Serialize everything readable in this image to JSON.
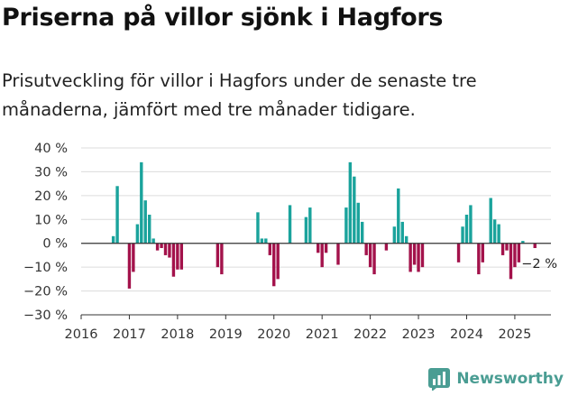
{
  "chart_data": {
    "type": "bar",
    "title": "Priserna på villor sjönk i Hagfors",
    "subtitle": "Prisutveckling för villor i Hagfors under de senaste tre månaderna, jämfört med tre månader tidigare.",
    "ylim": [
      -30,
      40
    ],
    "xlim": [
      2016,
      2025.75
    ],
    "y_ticks": [
      40,
      30,
      20,
      10,
      0,
      -10,
      -20,
      -30
    ],
    "y_tick_labels": [
      "40 %",
      "30 %",
      "20 %",
      "10 %",
      "0 %",
      "−10 %",
      "−20 %",
      "−30 %"
    ],
    "x_ticks": [
      2016,
      2017,
      2018,
      2019,
      2020,
      2021,
      2022,
      2023,
      2024,
      2025
    ],
    "x_tick_labels": [
      "2016",
      "2017",
      "2018",
      "2019",
      "2020",
      "2021",
      "2022",
      "2023",
      "2024",
      "2025"
    ],
    "grid": true,
    "colors": {
      "positive": "#1aa39c",
      "negative": "#a3124b"
    },
    "annotation": {
      "text": "−2 %",
      "x": 2025.25,
      "y": -2
    },
    "points": [
      {
        "x": 2016.667,
        "y": 3
      },
      {
        "x": 2016.75,
        "y": 24
      },
      {
        "x": 2017.0,
        "y": -19
      },
      {
        "x": 2017.083,
        "y": -12
      },
      {
        "x": 2017.167,
        "y": 8
      },
      {
        "x": 2017.25,
        "y": 34
      },
      {
        "x": 2017.333,
        "y": 18
      },
      {
        "x": 2017.417,
        "y": 12
      },
      {
        "x": 2017.5,
        "y": 2
      },
      {
        "x": 2017.583,
        "y": -3
      },
      {
        "x": 2017.667,
        "y": -2
      },
      {
        "x": 2017.75,
        "y": -5
      },
      {
        "x": 2017.833,
        "y": -6
      },
      {
        "x": 2017.917,
        "y": -14
      },
      {
        "x": 2018.0,
        "y": -11
      },
      {
        "x": 2018.083,
        "y": -11
      },
      {
        "x": 2018.833,
        "y": -10
      },
      {
        "x": 2018.917,
        "y": -13
      },
      {
        "x": 2019.667,
        "y": 13
      },
      {
        "x": 2019.75,
        "y": 2
      },
      {
        "x": 2019.833,
        "y": 2
      },
      {
        "x": 2019.917,
        "y": -5
      },
      {
        "x": 2020.0,
        "y": -18
      },
      {
        "x": 2020.083,
        "y": -15
      },
      {
        "x": 2020.333,
        "y": 16
      },
      {
        "x": 2020.667,
        "y": 11
      },
      {
        "x": 2020.75,
        "y": 15
      },
      {
        "x": 2020.917,
        "y": -4
      },
      {
        "x": 2021.0,
        "y": -10
      },
      {
        "x": 2021.083,
        "y": -4
      },
      {
        "x": 2021.333,
        "y": -9
      },
      {
        "x": 2021.5,
        "y": 15
      },
      {
        "x": 2021.583,
        "y": 34
      },
      {
        "x": 2021.667,
        "y": 28
      },
      {
        "x": 2021.75,
        "y": 17
      },
      {
        "x": 2021.833,
        "y": 9
      },
      {
        "x": 2021.917,
        "y": -5
      },
      {
        "x": 2022.0,
        "y": -10
      },
      {
        "x": 2022.083,
        "y": -13
      },
      {
        "x": 2022.333,
        "y": -3
      },
      {
        "x": 2022.5,
        "y": 7
      },
      {
        "x": 2022.583,
        "y": 23
      },
      {
        "x": 2022.667,
        "y": 9
      },
      {
        "x": 2022.75,
        "y": 3
      },
      {
        "x": 2022.833,
        "y": -12
      },
      {
        "x": 2022.917,
        "y": -9
      },
      {
        "x": 2023.0,
        "y": -12
      },
      {
        "x": 2023.083,
        "y": -10
      },
      {
        "x": 2023.833,
        "y": -8
      },
      {
        "x": 2023.917,
        "y": 7
      },
      {
        "x": 2024.0,
        "y": 12
      },
      {
        "x": 2024.083,
        "y": 16
      },
      {
        "x": 2024.25,
        "y": -13
      },
      {
        "x": 2024.333,
        "y": -8
      },
      {
        "x": 2024.5,
        "y": 19
      },
      {
        "x": 2024.583,
        "y": 10
      },
      {
        "x": 2024.667,
        "y": 8
      },
      {
        "x": 2024.75,
        "y": -5
      },
      {
        "x": 2024.833,
        "y": -3
      },
      {
        "x": 2024.917,
        "y": -15
      },
      {
        "x": 2025.0,
        "y": -10
      },
      {
        "x": 2025.083,
        "y": -8
      },
      {
        "x": 2025.167,
        "y": 1
      },
      {
        "x": 2025.417,
        "y": -2
      }
    ]
  },
  "brand": {
    "name": "Newsworthy",
    "icon": "newsworthy-logo-icon",
    "color": "#4a9d93"
  }
}
